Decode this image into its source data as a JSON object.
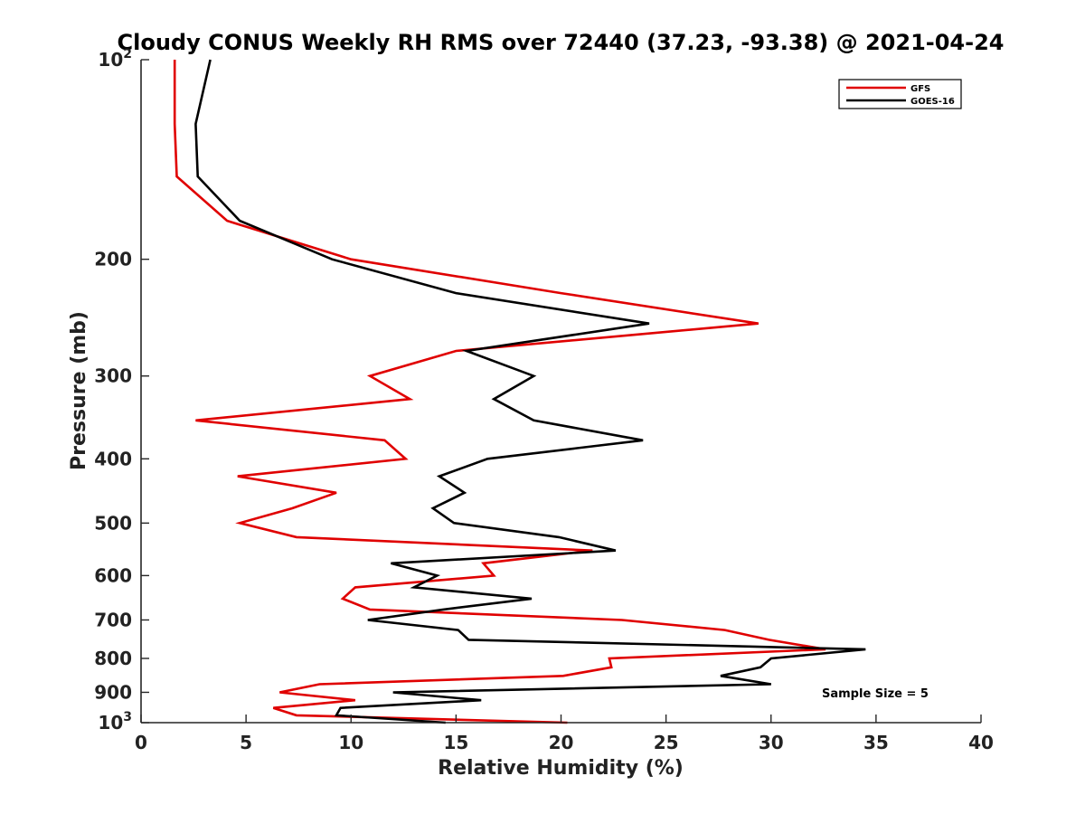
{
  "chart_data": {
    "type": "line",
    "title": "Cloudy CONUS Weekly RH RMS over 72440 (37.23, -93.38) @ 2021-04-24",
    "xlabel": "Relative Humidity (%)",
    "ylabel": "Pressure (mb)",
    "xlim": [
      0,
      40
    ],
    "ylim": [
      100,
      1000
    ],
    "y_scale": "log",
    "y_reversed": true,
    "grid": false,
    "legend_position": "top-right",
    "annotation": "Sample Size = 5",
    "x_ticks": [
      "0",
      "5",
      "10",
      "15",
      "20",
      "25",
      "30",
      "35",
      "40"
    ],
    "y_ticks": [
      {
        "value": 100,
        "base": "10",
        "exp": "2"
      },
      {
        "value": 200,
        "label": "200"
      },
      {
        "value": 300,
        "label": "300"
      },
      {
        "value": 400,
        "label": "400"
      },
      {
        "value": 500,
        "label": "500"
      },
      {
        "value": 600,
        "label": "600"
      },
      {
        "value": 700,
        "label": "700"
      },
      {
        "value": 800,
        "label": "800"
      },
      {
        "value": 900,
        "label": "900"
      },
      {
        "value": 1000,
        "base": "10",
        "exp": "3"
      }
    ],
    "series": [
      {
        "name": "GFS",
        "color": "#e00000",
        "points": [
          {
            "rh": 1.6,
            "p": 100
          },
          {
            "rh": 1.6,
            "p": 125
          },
          {
            "rh": 1.7,
            "p": 150
          },
          {
            "rh": 4.1,
            "p": 175
          },
          {
            "rh": 10.0,
            "p": 200
          },
          {
            "rh": 20.0,
            "p": 225
          },
          {
            "rh": 29.4,
            "p": 250
          },
          {
            "rh": 15.0,
            "p": 275
          },
          {
            "rh": 10.9,
            "p": 300
          },
          {
            "rh": 12.8,
            "p": 325
          },
          {
            "rh": 2.6,
            "p": 350
          },
          {
            "rh": 11.6,
            "p": 375
          },
          {
            "rh": 12.6,
            "p": 400
          },
          {
            "rh": 4.6,
            "p": 425
          },
          {
            "rh": 9.3,
            "p": 450
          },
          {
            "rh": 7.2,
            "p": 475
          },
          {
            "rh": 4.7,
            "p": 500
          },
          {
            "rh": 7.4,
            "p": 525
          },
          {
            "rh": 21.5,
            "p": 550
          },
          {
            "rh": 16.3,
            "p": 575
          },
          {
            "rh": 16.8,
            "p": 600
          },
          {
            "rh": 10.2,
            "p": 625
          },
          {
            "rh": 9.6,
            "p": 650
          },
          {
            "rh": 10.9,
            "p": 675
          },
          {
            "rh": 22.9,
            "p": 700
          },
          {
            "rh": 27.8,
            "p": 725
          },
          {
            "rh": 29.9,
            "p": 750
          },
          {
            "rh": 32.6,
            "p": 775
          },
          {
            "rh": 22.3,
            "p": 800
          },
          {
            "rh": 22.4,
            "p": 825
          },
          {
            "rh": 20.1,
            "p": 850
          },
          {
            "rh": 8.5,
            "p": 875
          },
          {
            "rh": 6.6,
            "p": 900
          },
          {
            "rh": 10.2,
            "p": 925
          },
          {
            "rh": 6.3,
            "p": 950
          },
          {
            "rh": 7.4,
            "p": 975
          },
          {
            "rh": 20.3,
            "p": 1000
          }
        ]
      },
      {
        "name": "GOES-16",
        "color": "#000000",
        "points": [
          {
            "rh": 3.3,
            "p": 100
          },
          {
            "rh": 2.6,
            "p": 125
          },
          {
            "rh": 2.7,
            "p": 150
          },
          {
            "rh": 4.7,
            "p": 175
          },
          {
            "rh": 9.1,
            "p": 200
          },
          {
            "rh": 15.0,
            "p": 225
          },
          {
            "rh": 24.2,
            "p": 250
          },
          {
            "rh": 15.5,
            "p": 275
          },
          {
            "rh": 18.7,
            "p": 300
          },
          {
            "rh": 16.8,
            "p": 325
          },
          {
            "rh": 18.7,
            "p": 350
          },
          {
            "rh": 23.9,
            "p": 375
          },
          {
            "rh": 16.5,
            "p": 400
          },
          {
            "rh": 14.2,
            "p": 425
          },
          {
            "rh": 15.4,
            "p": 450
          },
          {
            "rh": 13.9,
            "p": 475
          },
          {
            "rh": 14.9,
            "p": 500
          },
          {
            "rh": 19.9,
            "p": 525
          },
          {
            "rh": 22.6,
            "p": 550
          },
          {
            "rh": 11.9,
            "p": 575
          },
          {
            "rh": 14.1,
            "p": 600
          },
          {
            "rh": 13.0,
            "p": 625
          },
          {
            "rh": 18.6,
            "p": 650
          },
          {
            "rh": 14.4,
            "p": 675
          },
          {
            "rh": 10.8,
            "p": 700
          },
          {
            "rh": 15.1,
            "p": 725
          },
          {
            "rh": 15.6,
            "p": 750
          },
          {
            "rh": 34.5,
            "p": 775
          },
          {
            "rh": 30.0,
            "p": 800
          },
          {
            "rh": 29.5,
            "p": 825
          },
          {
            "rh": 27.6,
            "p": 850
          },
          {
            "rh": 30.0,
            "p": 875
          },
          {
            "rh": 12.0,
            "p": 900
          },
          {
            "rh": 16.2,
            "p": 925
          },
          {
            "rh": 9.5,
            "p": 950
          },
          {
            "rh": 9.3,
            "p": 975
          },
          {
            "rh": 14.5,
            "p": 1000
          }
        ]
      }
    ]
  }
}
